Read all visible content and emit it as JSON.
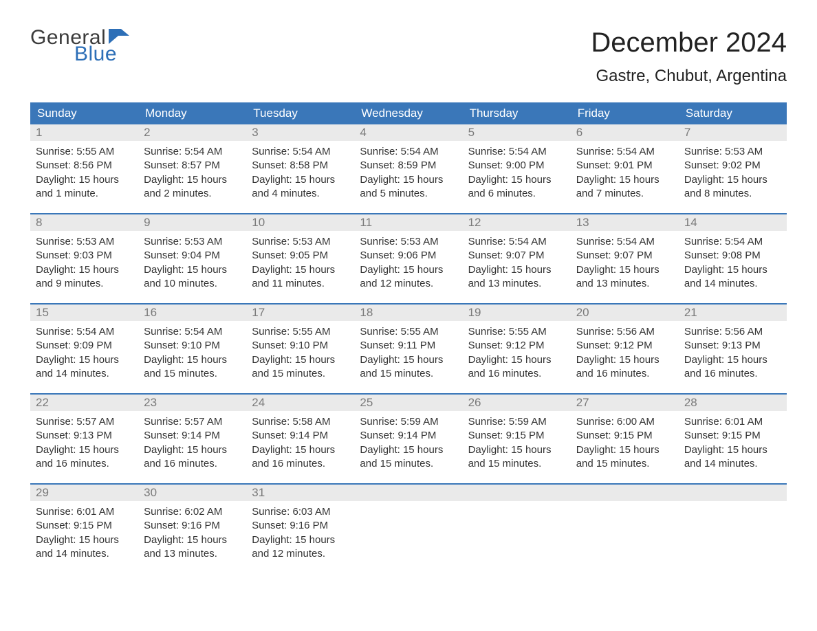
{
  "logo": {
    "line1": "General",
    "line2": "Blue",
    "flag_color": "#2d6fb7",
    "text_gray": "#3b3b3b"
  },
  "header": {
    "month_title": "December 2024",
    "location": "Gastre, Chubut, Argentina"
  },
  "colors": {
    "header_bg": "#3a77b9",
    "header_text": "#ffffff",
    "daynum_bg": "#eaeaea",
    "daynum_text": "#7a7a7a",
    "body_text": "#333333",
    "rule": "#3a77b9",
    "page_bg": "#ffffff"
  },
  "typography": {
    "month_title_fontsize": 40,
    "location_fontsize": 24,
    "day_header_fontsize": 17,
    "daynum_fontsize": 17,
    "body_fontsize": 15,
    "font_family": "Arial"
  },
  "day_headers": [
    "Sunday",
    "Monday",
    "Tuesday",
    "Wednesday",
    "Thursday",
    "Friday",
    "Saturday"
  ],
  "weeks": [
    [
      {
        "num": "1",
        "sunrise": "Sunrise: 5:55 AM",
        "sunset": "Sunset: 8:56 PM",
        "daylight": "Daylight: 15 hours and 1 minute."
      },
      {
        "num": "2",
        "sunrise": "Sunrise: 5:54 AM",
        "sunset": "Sunset: 8:57 PM",
        "daylight": "Daylight: 15 hours and 2 minutes."
      },
      {
        "num": "3",
        "sunrise": "Sunrise: 5:54 AM",
        "sunset": "Sunset: 8:58 PM",
        "daylight": "Daylight: 15 hours and 4 minutes."
      },
      {
        "num": "4",
        "sunrise": "Sunrise: 5:54 AM",
        "sunset": "Sunset: 8:59 PM",
        "daylight": "Daylight: 15 hours and 5 minutes."
      },
      {
        "num": "5",
        "sunrise": "Sunrise: 5:54 AM",
        "sunset": "Sunset: 9:00 PM",
        "daylight": "Daylight: 15 hours and 6 minutes."
      },
      {
        "num": "6",
        "sunrise": "Sunrise: 5:54 AM",
        "sunset": "Sunset: 9:01 PM",
        "daylight": "Daylight: 15 hours and 7 minutes."
      },
      {
        "num": "7",
        "sunrise": "Sunrise: 5:53 AM",
        "sunset": "Sunset: 9:02 PM",
        "daylight": "Daylight: 15 hours and 8 minutes."
      }
    ],
    [
      {
        "num": "8",
        "sunrise": "Sunrise: 5:53 AM",
        "sunset": "Sunset: 9:03 PM",
        "daylight": "Daylight: 15 hours and 9 minutes."
      },
      {
        "num": "9",
        "sunrise": "Sunrise: 5:53 AM",
        "sunset": "Sunset: 9:04 PM",
        "daylight": "Daylight: 15 hours and 10 minutes."
      },
      {
        "num": "10",
        "sunrise": "Sunrise: 5:53 AM",
        "sunset": "Sunset: 9:05 PM",
        "daylight": "Daylight: 15 hours and 11 minutes."
      },
      {
        "num": "11",
        "sunrise": "Sunrise: 5:53 AM",
        "sunset": "Sunset: 9:06 PM",
        "daylight": "Daylight: 15 hours and 12 minutes."
      },
      {
        "num": "12",
        "sunrise": "Sunrise: 5:54 AM",
        "sunset": "Sunset: 9:07 PM",
        "daylight": "Daylight: 15 hours and 13 minutes."
      },
      {
        "num": "13",
        "sunrise": "Sunrise: 5:54 AM",
        "sunset": "Sunset: 9:07 PM",
        "daylight": "Daylight: 15 hours and 13 minutes."
      },
      {
        "num": "14",
        "sunrise": "Sunrise: 5:54 AM",
        "sunset": "Sunset: 9:08 PM",
        "daylight": "Daylight: 15 hours and 14 minutes."
      }
    ],
    [
      {
        "num": "15",
        "sunrise": "Sunrise: 5:54 AM",
        "sunset": "Sunset: 9:09 PM",
        "daylight": "Daylight: 15 hours and 14 minutes."
      },
      {
        "num": "16",
        "sunrise": "Sunrise: 5:54 AM",
        "sunset": "Sunset: 9:10 PM",
        "daylight": "Daylight: 15 hours and 15 minutes."
      },
      {
        "num": "17",
        "sunrise": "Sunrise: 5:55 AM",
        "sunset": "Sunset: 9:10 PM",
        "daylight": "Daylight: 15 hours and 15 minutes."
      },
      {
        "num": "18",
        "sunrise": "Sunrise: 5:55 AM",
        "sunset": "Sunset: 9:11 PM",
        "daylight": "Daylight: 15 hours and 15 minutes."
      },
      {
        "num": "19",
        "sunrise": "Sunrise: 5:55 AM",
        "sunset": "Sunset: 9:12 PM",
        "daylight": "Daylight: 15 hours and 16 minutes."
      },
      {
        "num": "20",
        "sunrise": "Sunrise: 5:56 AM",
        "sunset": "Sunset: 9:12 PM",
        "daylight": "Daylight: 15 hours and 16 minutes."
      },
      {
        "num": "21",
        "sunrise": "Sunrise: 5:56 AM",
        "sunset": "Sunset: 9:13 PM",
        "daylight": "Daylight: 15 hours and 16 minutes."
      }
    ],
    [
      {
        "num": "22",
        "sunrise": "Sunrise: 5:57 AM",
        "sunset": "Sunset: 9:13 PM",
        "daylight": "Daylight: 15 hours and 16 minutes."
      },
      {
        "num": "23",
        "sunrise": "Sunrise: 5:57 AM",
        "sunset": "Sunset: 9:14 PM",
        "daylight": "Daylight: 15 hours and 16 minutes."
      },
      {
        "num": "24",
        "sunrise": "Sunrise: 5:58 AM",
        "sunset": "Sunset: 9:14 PM",
        "daylight": "Daylight: 15 hours and 16 minutes."
      },
      {
        "num": "25",
        "sunrise": "Sunrise: 5:59 AM",
        "sunset": "Sunset: 9:14 PM",
        "daylight": "Daylight: 15 hours and 15 minutes."
      },
      {
        "num": "26",
        "sunrise": "Sunrise: 5:59 AM",
        "sunset": "Sunset: 9:15 PM",
        "daylight": "Daylight: 15 hours and 15 minutes."
      },
      {
        "num": "27",
        "sunrise": "Sunrise: 6:00 AM",
        "sunset": "Sunset: 9:15 PM",
        "daylight": "Daylight: 15 hours and 15 minutes."
      },
      {
        "num": "28",
        "sunrise": "Sunrise: 6:01 AM",
        "sunset": "Sunset: 9:15 PM",
        "daylight": "Daylight: 15 hours and 14 minutes."
      }
    ],
    [
      {
        "num": "29",
        "sunrise": "Sunrise: 6:01 AM",
        "sunset": "Sunset: 9:15 PM",
        "daylight": "Daylight: 15 hours and 14 minutes."
      },
      {
        "num": "30",
        "sunrise": "Sunrise: 6:02 AM",
        "sunset": "Sunset: 9:16 PM",
        "daylight": "Daylight: 15 hours and 13 minutes."
      },
      {
        "num": "31",
        "sunrise": "Sunrise: 6:03 AM",
        "sunset": "Sunset: 9:16 PM",
        "daylight": "Daylight: 15 hours and 12 minutes."
      },
      null,
      null,
      null,
      null
    ]
  ]
}
